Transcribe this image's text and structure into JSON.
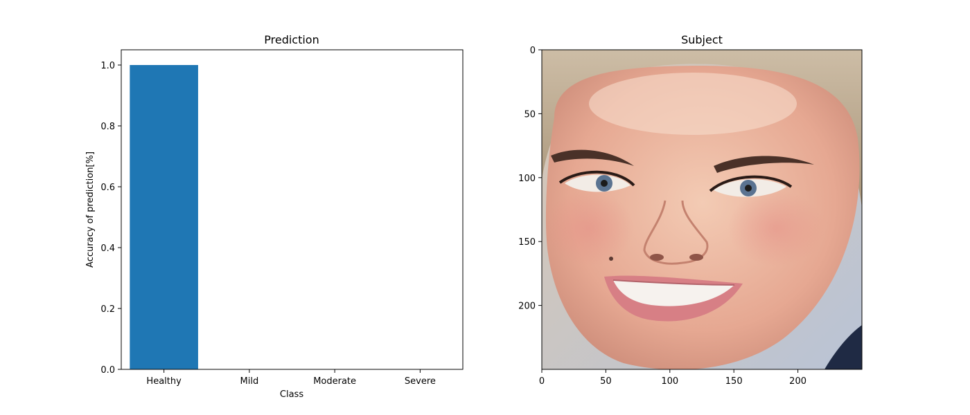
{
  "chart_data": [
    {
      "type": "bar",
      "title": "Prediction",
      "xlabel": "Class",
      "ylabel": "Accuracy of prediction[%]",
      "categories": [
        "Healthy",
        "Mild",
        "Moderate",
        "Severe"
      ],
      "values": [
        1.0,
        0.0,
        0.0,
        0.0
      ],
      "ylim": [
        0,
        1.05
      ],
      "yticks": [
        "0.0",
        "0.2",
        "0.4",
        "0.6",
        "0.8",
        "1.0"
      ],
      "bar_color": "#1f77b4",
      "grid": false
    },
    {
      "type": "image",
      "title": "Subject",
      "xlim": [
        0,
        250
      ],
      "ylim": [
        250,
        0
      ],
      "xticks": [
        "0",
        "50",
        "100",
        "150",
        "200"
      ],
      "yticks": [
        "0",
        "50",
        "100",
        "150",
        "200"
      ],
      "image_content": "face-photo"
    }
  ]
}
